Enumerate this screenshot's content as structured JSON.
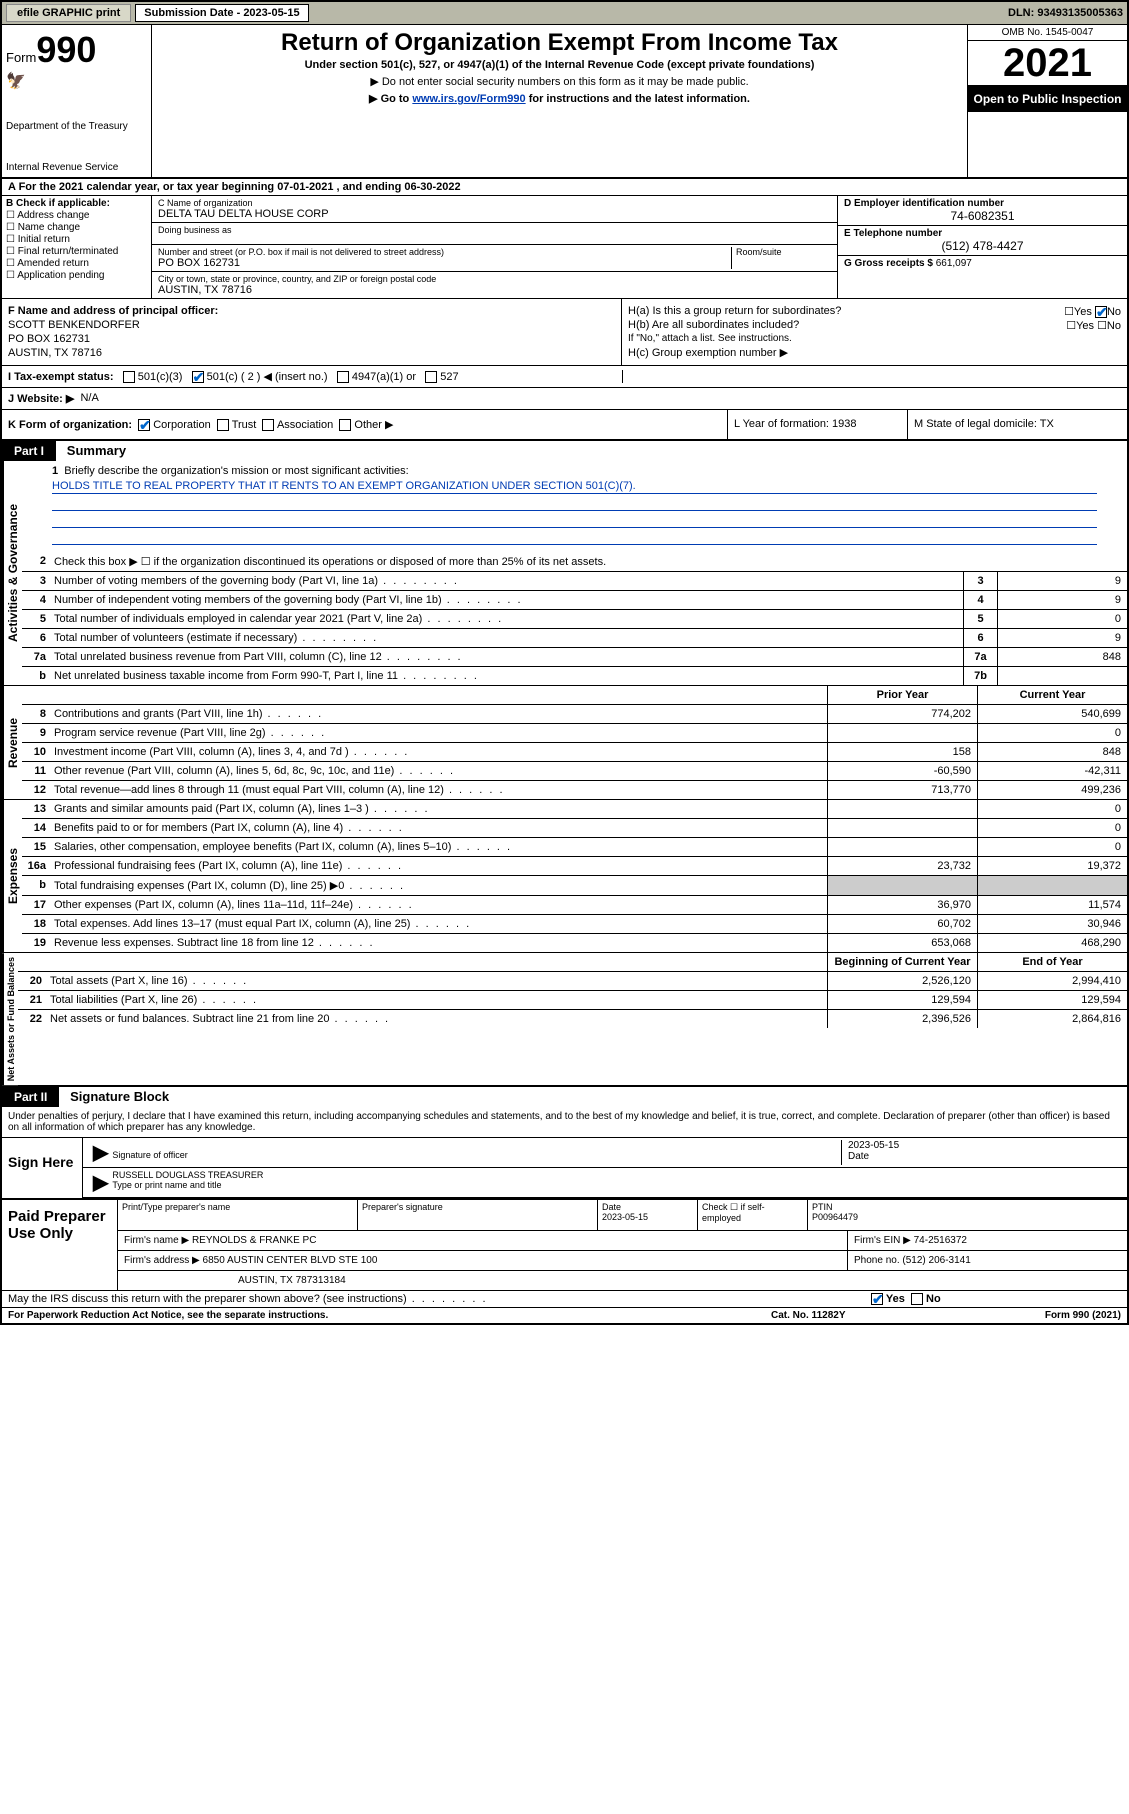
{
  "topbar": {
    "efile": "efile GRAPHIC print",
    "sub_label": "Submission Date - 2023-05-15",
    "dln": "DLN: 93493135005363"
  },
  "header": {
    "form_prefix": "Form",
    "form_num": "990",
    "dept": "Department of the Treasury",
    "irs": "Internal Revenue Service",
    "title": "Return of Organization Exempt From Income Tax",
    "sub1": "Under section 501(c), 527, or 4947(a)(1) of the Internal Revenue Code (except private foundations)",
    "sub2": "▶ Do not enter social security numbers on this form as it may be made public.",
    "sub3_pre": "▶ Go to ",
    "sub3_link": "www.irs.gov/Form990",
    "sub3_post": " for instructions and the latest information.",
    "omb": "OMB No. 1545-0047",
    "year": "2021",
    "opi": "Open to Public Inspection"
  },
  "rowA": "A For the 2021 calendar year, or tax year beginning 07-01-2021   , and ending 06-30-2022",
  "secB": {
    "hdr": "B Check if applicable:",
    "opts": [
      "Address change",
      "Name change",
      "Initial return",
      "Final return/terminated",
      "Amended return",
      "Application pending"
    ],
    "c_lab": "C Name of organization",
    "c_val": "DELTA TAU DELTA HOUSE CORP",
    "dba": "Doing business as",
    "addr_lab": "Number and street (or P.O. box if mail is not delivered to street address)",
    "room": "Room/suite",
    "addr_val": "PO BOX 162731",
    "city_lab": "City or town, state or province, country, and ZIP or foreign postal code",
    "city_val": "AUSTIN, TX  78716",
    "d_lab": "D Employer identification number",
    "d_val": "74-6082351",
    "e_lab": "E Telephone number",
    "e_val": "(512) 478-4427",
    "g_lab": "G Gross receipts $ ",
    "g_val": "661,097"
  },
  "secF": {
    "f_lab": "F  Name and address of principal officer:",
    "f_name": "SCOTT BENKENDORFER",
    "f_addr1": "PO BOX 162731",
    "f_addr2": "AUSTIN, TX  78716",
    "ha": "H(a)  Is this a group return for subordinates?",
    "hb": "H(b)  Are all subordinates included?",
    "hb_note": "If \"No,\" attach a list. See instructions.",
    "hc": "H(c)  Group exemption number ▶"
  },
  "taxrow": {
    "i": "I   Tax-exempt status:",
    "c3": "501(c)(3)",
    "c": "501(c) ( 2 ) ◀ (insert no.)",
    "a1": "4947(a)(1) or",
    "s527": "527"
  },
  "webrow": {
    "j": "J   Website: ▶",
    "val": "N/A"
  },
  "korg": {
    "k": "K Form of organization:",
    "corp": "Corporation",
    "trust": "Trust",
    "assoc": "Association",
    "other": "Other ▶",
    "l": "L Year of formation: 1938",
    "m": "M State of legal domicile: TX"
  },
  "part1": {
    "hdr": "Part I",
    "title": "Summary",
    "q1": "Briefly describe the organization's mission or most significant activities:",
    "mission": "HOLDS TITLE TO REAL PROPERTY THAT IT RENTS TO AN EXEMPT ORGANIZATION UNDER SECTION 501(C)(7).",
    "q2": "Check this box ▶ ☐  if the organization discontinued its operations or disposed of more than 25% of its net assets.",
    "rows_gov": [
      {
        "n": "3",
        "t": "Number of voting members of the governing body (Part VI, line 1a)",
        "b": "3",
        "v": "9"
      },
      {
        "n": "4",
        "t": "Number of independent voting members of the governing body (Part VI, line 1b)",
        "b": "4",
        "v": "9"
      },
      {
        "n": "5",
        "t": "Total number of individuals employed in calendar year 2021 (Part V, line 2a)",
        "b": "5",
        "v": "0"
      },
      {
        "n": "6",
        "t": "Total number of volunteers (estimate if necessary)",
        "b": "6",
        "v": "9"
      },
      {
        "n": "7a",
        "t": "Total unrelated business revenue from Part VIII, column (C), line 12",
        "b": "7a",
        "v": "848"
      },
      {
        "n": "b",
        "t": "Net unrelated business taxable income from Form 990-T, Part I, line 11",
        "b": "7b",
        "v": ""
      }
    ],
    "colhdr_prior": "Prior Year",
    "colhdr_curr": "Current Year",
    "rows_rev": [
      {
        "n": "8",
        "t": "Contributions and grants (Part VIII, line 1h)",
        "p": "774,202",
        "c": "540,699"
      },
      {
        "n": "9",
        "t": "Program service revenue (Part VIII, line 2g)",
        "p": "",
        "c": "0"
      },
      {
        "n": "10",
        "t": "Investment income (Part VIII, column (A), lines 3, 4, and 7d )",
        "p": "158",
        "c": "848"
      },
      {
        "n": "11",
        "t": "Other revenue (Part VIII, column (A), lines 5, 6d, 8c, 9c, 10c, and 11e)",
        "p": "-60,590",
        "c": "-42,311"
      },
      {
        "n": "12",
        "t": "Total revenue—add lines 8 through 11 (must equal Part VIII, column (A), line 12)",
        "p": "713,770",
        "c": "499,236"
      }
    ],
    "rows_exp": [
      {
        "n": "13",
        "t": "Grants and similar amounts paid (Part IX, column (A), lines 1–3 )",
        "p": "",
        "c": "0"
      },
      {
        "n": "14",
        "t": "Benefits paid to or for members (Part IX, column (A), line 4)",
        "p": "",
        "c": "0"
      },
      {
        "n": "15",
        "t": "Salaries, other compensation, employee benefits (Part IX, column (A), lines 5–10)",
        "p": "",
        "c": "0"
      },
      {
        "n": "16a",
        "t": "Professional fundraising fees (Part IX, column (A), line 11e)",
        "p": "23,732",
        "c": "19,372"
      },
      {
        "n": "b",
        "t": "Total fundraising expenses (Part IX, column (D), line 25) ▶0",
        "p": "shade",
        "c": "shade"
      },
      {
        "n": "17",
        "t": "Other expenses (Part IX, column (A), lines 11a–11d, 11f–24e)",
        "p": "36,970",
        "c": "11,574"
      },
      {
        "n": "18",
        "t": "Total expenses. Add lines 13–17 (must equal Part IX, column (A), line 25)",
        "p": "60,702",
        "c": "30,946"
      },
      {
        "n": "19",
        "t": "Revenue less expenses. Subtract line 18 from line 12",
        "p": "653,068",
        "c": "468,290"
      }
    ],
    "colhdr_beg": "Beginning of Current Year",
    "colhdr_end": "End of Year",
    "rows_net": [
      {
        "n": "20",
        "t": "Total assets (Part X, line 16)",
        "p": "2,526,120",
        "c": "2,994,410"
      },
      {
        "n": "21",
        "t": "Total liabilities (Part X, line 26)",
        "p": "129,594",
        "c": "129,594"
      },
      {
        "n": "22",
        "t": "Net assets or fund balances. Subtract line 21 from line 20",
        "p": "2,396,526",
        "c": "2,864,816"
      }
    ],
    "vtab_gov": "Activities & Governance",
    "vtab_rev": "Revenue",
    "vtab_exp": "Expenses",
    "vtab_net": "Net Assets or Fund Balances"
  },
  "part2": {
    "hdr": "Part II",
    "title": "Signature Block",
    "decl": "Under penalties of perjury, I declare that I have examined this return, including accompanying schedules and statements, and to the best of my knowledge and belief, it is true, correct, and complete. Declaration of preparer (other than officer) is based on all information of which preparer has any knowledge.",
    "sign_here": "Sign Here",
    "sig_officer": "Signature of officer",
    "sig_date": "2023-05-15",
    "date_lab": "Date",
    "name_title": "RUSSELL DOUGLASS TREASURER",
    "name_lab": "Type or print name and title",
    "paid": "Paid Preparer Use Only",
    "p_name_lab": "Print/Type preparer's name",
    "p_sig_lab": "Preparer's signature",
    "p_date_lab": "Date",
    "p_date": "2023-05-15",
    "p_check": "Check ☐ if self-employed",
    "ptin_lab": "PTIN",
    "ptin": "P00964479",
    "firm_name_lab": "Firm's name    ▶",
    "firm_name": "REYNOLDS & FRANKE PC",
    "firm_ein_lab": "Firm's EIN ▶",
    "firm_ein": "74-2516372",
    "firm_addr_lab": "Firm's address ▶",
    "firm_addr1": "6850 AUSTIN CENTER BLVD STE 100",
    "firm_addr2": "AUSTIN, TX  787313184",
    "phone_lab": "Phone no.",
    "phone": "(512) 206-3141"
  },
  "footer": {
    "discuss": "May the IRS discuss this return with the preparer shown above? (see instructions)",
    "yes": "Yes",
    "no": "No",
    "pra": "For Paperwork Reduction Act Notice, see the separate instructions.",
    "cat": "Cat. No. 11282Y",
    "form": "Form 990 (2021)"
  }
}
